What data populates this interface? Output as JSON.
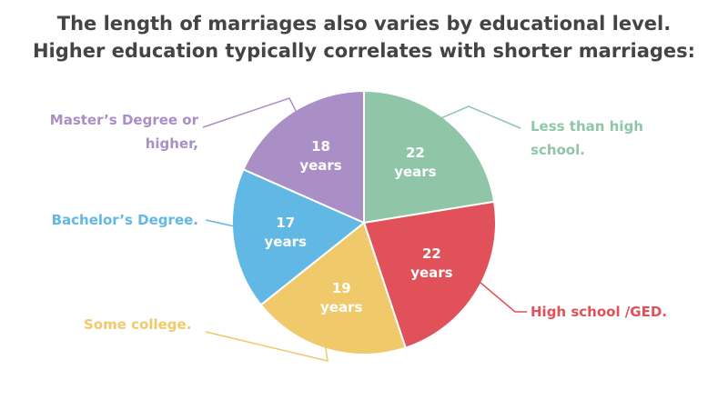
{
  "chart_data": {
    "type": "pie",
    "title": "The length of marriages also varies by educational level.",
    "subtitle": "Higher education typically correlates with shorter marriages:",
    "categories": [
      "Less than high school.",
      "High school /GED.",
      "Some college.",
      "Bachelor’s Degree.",
      "Master’s Degree or higher,"
    ],
    "values": [
      22,
      22,
      19,
      17,
      18
    ],
    "value_labels": [
      "22 years",
      "22 years",
      "19 years",
      "17 years",
      "18 years"
    ],
    "colors": [
      "#8fc6a8",
      "#e0515a",
      "#f0c96b",
      "#62b8e4",
      "#a98fc6"
    ]
  }
}
